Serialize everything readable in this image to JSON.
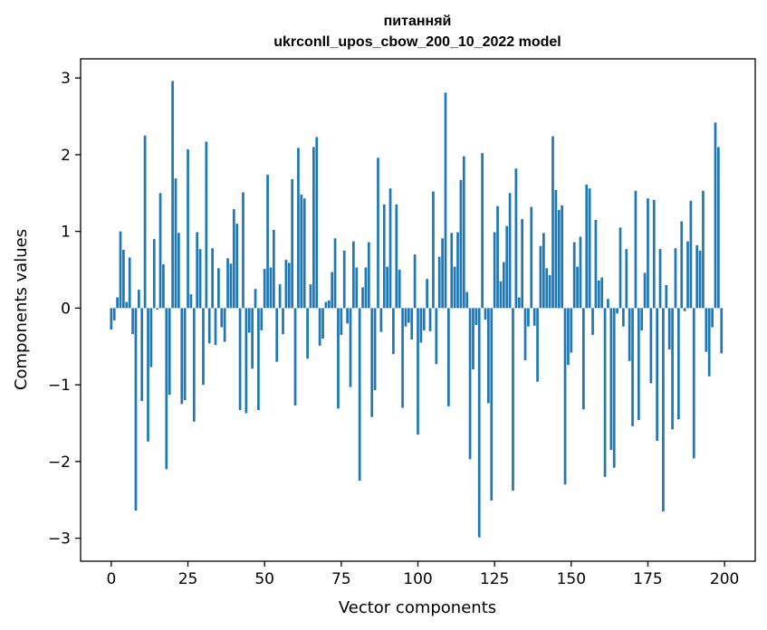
{
  "chart_data": {
    "type": "bar",
    "title": "питанняй",
    "subtitle": "ukrconll_upos_cbow_200_10_2022 model",
    "xlabel": "Vector components",
    "ylabel": "Components values",
    "xlim": [
      -10,
      210
    ],
    "ylim": [
      -3.3,
      3.25
    ],
    "xticks": [
      0,
      25,
      50,
      75,
      100,
      125,
      150,
      175,
      200
    ],
    "yticks": [
      -3,
      -2,
      -1,
      0,
      1,
      2,
      3
    ],
    "ytick_labels": [
      "−3",
      "−2",
      "−1",
      "0",
      "1",
      "2",
      "3"
    ],
    "grid": false,
    "bar_color": "#1f77b4",
    "x": [
      0,
      1,
      2,
      3,
      4,
      5,
      6,
      7,
      8,
      9,
      10,
      11,
      12,
      13,
      14,
      15,
      16,
      17,
      18,
      19,
      20,
      21,
      22,
      23,
      24,
      25,
      26,
      27,
      28,
      29,
      30,
      31,
      32,
      33,
      34,
      35,
      36,
      37,
      38,
      39,
      40,
      41,
      42,
      43,
      44,
      45,
      46,
      47,
      48,
      49,
      50,
      51,
      52,
      53,
      54,
      55,
      56,
      57,
      58,
      59,
      60,
      61,
      62,
      63,
      64,
      65,
      66,
      67,
      68,
      69,
      70,
      71,
      72,
      73,
      74,
      75,
      76,
      77,
      78,
      79,
      80,
      81,
      82,
      83,
      84,
      85,
      86,
      87,
      88,
      89,
      90,
      91,
      92,
      93,
      94,
      95,
      96,
      97,
      98,
      99,
      100,
      101,
      102,
      103,
      104,
      105,
      106,
      107,
      108,
      109,
      110,
      111,
      112,
      113,
      114,
      115,
      116,
      117,
      118,
      119,
      120,
      121,
      122,
      123,
      124,
      125,
      126,
      127,
      128,
      129,
      130,
      131,
      132,
      133,
      134,
      135,
      136,
      137,
      138,
      139,
      140,
      141,
      142,
      143,
      144,
      145,
      146,
      147,
      148,
      149,
      150,
      151,
      152,
      153,
      154,
      155,
      156,
      157,
      158,
      159,
      160,
      161,
      162,
      163,
      164,
      165,
      166,
      167,
      168,
      169,
      170,
      171,
      172,
      173,
      174,
      175,
      176,
      177,
      178,
      179,
      180,
      181,
      182,
      183,
      184,
      185,
      186,
      187,
      188,
      189,
      190,
      191,
      192,
      193,
      194,
      195,
      196,
      197,
      198,
      199
    ],
    "values": [
      -0.28,
      -0.16,
      0.14,
      1.0,
      0.76,
      0.08,
      0.66,
      -0.34,
      -2.64,
      0.24,
      -1.21,
      2.25,
      -1.74,
      -0.77,
      0.9,
      -0.02,
      1.5,
      0.57,
      -2.1,
      -1.13,
      2.96,
      1.69,
      0.98,
      -1.25,
      -1.2,
      2.07,
      0.18,
      -1.48,
      0.99,
      0.77,
      -1.0,
      2.17,
      -0.46,
      0.78,
      -0.48,
      0.52,
      -0.25,
      -0.44,
      0.65,
      0.58,
      1.29,
      1.1,
      -1.33,
      1.51,
      -1.37,
      -0.32,
      -0.79,
      0.25,
      -1.33,
      -0.29,
      0.51,
      1.74,
      0.53,
      1.02,
      -0.7,
      0.31,
      -0.34,
      0.63,
      0.59,
      1.68,
      -1.27,
      2.09,
      1.48,
      1.43,
      -0.66,
      0.31,
      2.1,
      2.23,
      -0.49,
      -0.4,
      0.08,
      0.1,
      0.47,
      0.91,
      -1.31,
      -0.35,
      0.75,
      -0.2,
      -1.03,
      0.87,
      0.53,
      -2.25,
      0.27,
      0.53,
      0.86,
      -1.42,
      -1.07,
      1.96,
      -0.31,
      1.35,
      0.54,
      1.56,
      -0.6,
      1.35,
      0.5,
      -1.3,
      -0.24,
      -0.19,
      -0.41,
      0.7,
      -1.65,
      -0.45,
      -0.29,
      0.38,
      -0.3,
      1.52,
      -0.73,
      0.67,
      0.91,
      2.81,
      -1.28,
      0.98,
      0.54,
      0.99,
      1.67,
      1.98,
      0.21,
      -1.97,
      -0.8,
      -0.22,
      -2.99,
      2.02,
      -0.15,
      -1.24,
      -2.51,
      0.99,
      1.33,
      0.35,
      0.6,
      1.07,
      1.5,
      -2.38,
      1.82,
      0.14,
      1.16,
      -0.68,
      -0.24,
      1.32,
      -0.23,
      -0.96,
      0.81,
      0.98,
      0.52,
      0.43,
      2.24,
      1.54,
      1.28,
      1.34,
      -2.3,
      -0.74,
      -0.58,
      0.86,
      0.54,
      0.93,
      -1.32,
      1.61,
      1.56,
      -0.35,
      1.15,
      0.36,
      0.4,
      -2.2,
      0.12,
      -1.85,
      -2.08,
      -0.07,
      1.05,
      -0.24,
      0.77,
      -0.69,
      -1.54,
      1.53,
      -1.46,
      -0.29,
      0.46,
      1.43,
      -0.98,
      1.41,
      -1.73,
      0.77,
      -2.65,
      0.3,
      -0.54,
      -1.58,
      0.78,
      -1.45,
      1.13,
      -0.04,
      0.87,
      1.4,
      -1.96,
      0.82,
      0.75,
      1.53,
      -0.57,
      -0.89,
      -0.25,
      2.42,
      2.1,
      -0.59
    ]
  }
}
